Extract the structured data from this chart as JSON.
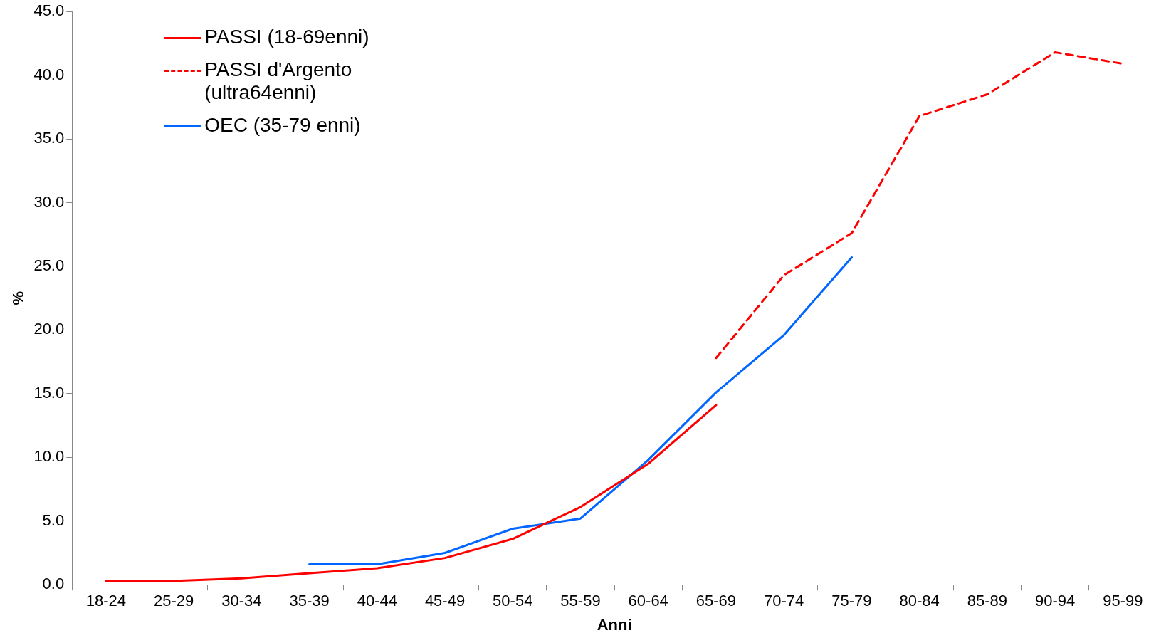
{
  "chart_data": {
    "type": "line",
    "xlabel": "Anni",
    "ylabel": "%",
    "categories": [
      "18-24",
      "25-29",
      "30-34",
      "35-39",
      "40-44",
      "45-49",
      "50-54",
      "55-59",
      "60-64",
      "65-69",
      "70-74",
      "75-79",
      "80-84",
      "85-89",
      "90-94",
      "95-99"
    ],
    "series": [
      {
        "name": "PASSI (18-69enni)",
        "color": "#ff0000",
        "line_style": "solid",
        "values": [
          0.3,
          0.3,
          0.5,
          0.9,
          1.3,
          2.1,
          3.6,
          6.1,
          9.5,
          14.1,
          null,
          null,
          null,
          null,
          null,
          null
        ]
      },
      {
        "name": "PASSI d'Argento (ultra64enni)",
        "color": "#ff0000",
        "line_style": "dashed",
        "values": [
          null,
          null,
          null,
          null,
          null,
          null,
          null,
          null,
          null,
          17.8,
          24.3,
          27.6,
          36.8,
          38.5,
          41.8,
          40.9
        ]
      },
      {
        "name": "OEC (35-79 enni)",
        "color": "#0066ff",
        "line_style": "solid",
        "values": [
          null,
          null,
          null,
          1.6,
          1.6,
          2.5,
          4.4,
          5.2,
          9.8,
          15.1,
          19.6,
          25.7,
          null,
          null,
          null,
          null
        ]
      }
    ],
    "ylim": [
      0,
      45
    ],
    "yticks": [
      {
        "value": 0,
        "label": "0.0"
      },
      {
        "value": 5,
        "label": "5.0"
      },
      {
        "value": 10,
        "label": "10.0"
      },
      {
        "value": 15,
        "label": "15.0"
      },
      {
        "value": 20,
        "label": "20.0"
      },
      {
        "value": 25,
        "label": "25.0"
      },
      {
        "value": 30,
        "label": "30.0"
      },
      {
        "value": 35,
        "label": "35.0"
      },
      {
        "value": 40,
        "label": "40.0"
      },
      {
        "value": 45,
        "label": "45.0"
      }
    ],
    "grid": false,
    "legend": "top left",
    "marker": "none"
  }
}
